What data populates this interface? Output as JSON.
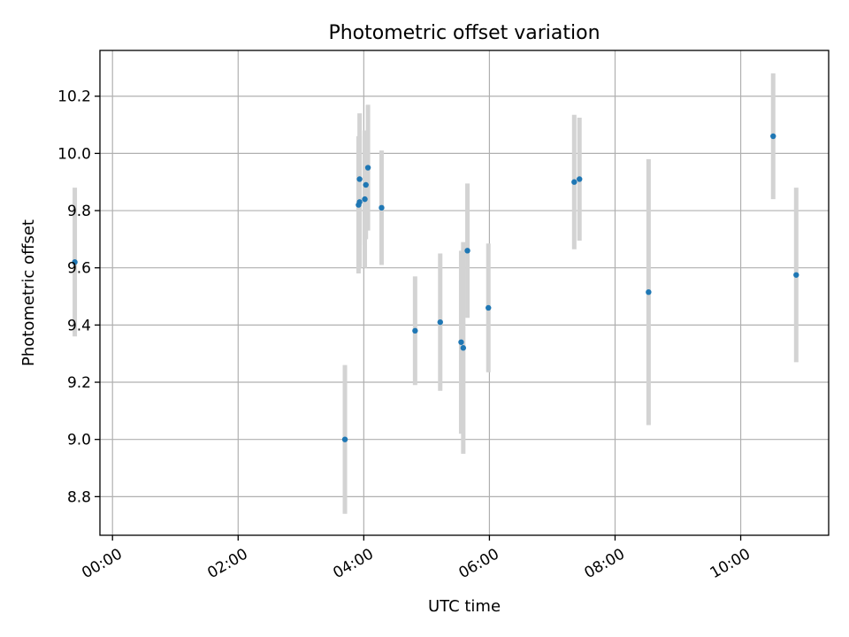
{
  "chart_data": {
    "type": "scatter",
    "title": "Photometric offset variation",
    "xlabel": "UTC time",
    "ylabel": "Photometric offset",
    "x_ticks": [
      "00:00",
      "02:00",
      "04:00",
      "06:00",
      "08:00",
      "10:00"
    ],
    "y_ticks": [
      "8.8",
      "9.0",
      "9.2",
      "9.4",
      "9.6",
      "9.8",
      "10.0",
      "10.2"
    ],
    "xlim": [
      "23:48",
      "11:24"
    ],
    "ylim": [
      8.665,
      10.36
    ],
    "grid": true,
    "colors": {
      "points": "#1f77b4",
      "errorbars": "#d3d3d3"
    },
    "points": [
      {
        "x": "23:24",
        "y": 9.62,
        "yerr": 0.26
      },
      {
        "x": "03:42",
        "y": 9.0,
        "yerr": 0.26
      },
      {
        "x": "03:55",
        "y": 9.82,
        "yerr": 0.24
      },
      {
        "x": "03:56",
        "y": 9.83,
        "yerr": 0.23
      },
      {
        "x": "03:56",
        "y": 9.91,
        "yerr": 0.23
      },
      {
        "x": "04:01",
        "y": 9.84,
        "yerr": 0.24
      },
      {
        "x": "04:02",
        "y": 9.89,
        "yerr": 0.19
      },
      {
        "x": "04:04",
        "y": 9.95,
        "yerr": 0.22
      },
      {
        "x": "04:17",
        "y": 9.81,
        "yerr": 0.2
      },
      {
        "x": "04:49",
        "y": 9.38,
        "yerr": 0.19
      },
      {
        "x": "05:13",
        "y": 9.41,
        "yerr": 0.24
      },
      {
        "x": "05:33",
        "y": 9.34,
        "yerr": 0.32
      },
      {
        "x": "05:35",
        "y": 9.32,
        "yerr": 0.37
      },
      {
        "x": "05:39",
        "y": 9.66,
        "yerr": 0.235
      },
      {
        "x": "05:59",
        "y": 9.46,
        "yerr": 0.225
      },
      {
        "x": "07:21",
        "y": 9.9,
        "yerr": 0.235
      },
      {
        "x": "07:26",
        "y": 9.91,
        "yerr": 0.215
      },
      {
        "x": "08:32",
        "y": 9.515,
        "yerr": 0.465
      },
      {
        "x": "10:31",
        "y": 10.06,
        "yerr": 0.22
      },
      {
        "x": "10:53",
        "y": 9.575,
        "yerr": 0.305
      }
    ]
  }
}
